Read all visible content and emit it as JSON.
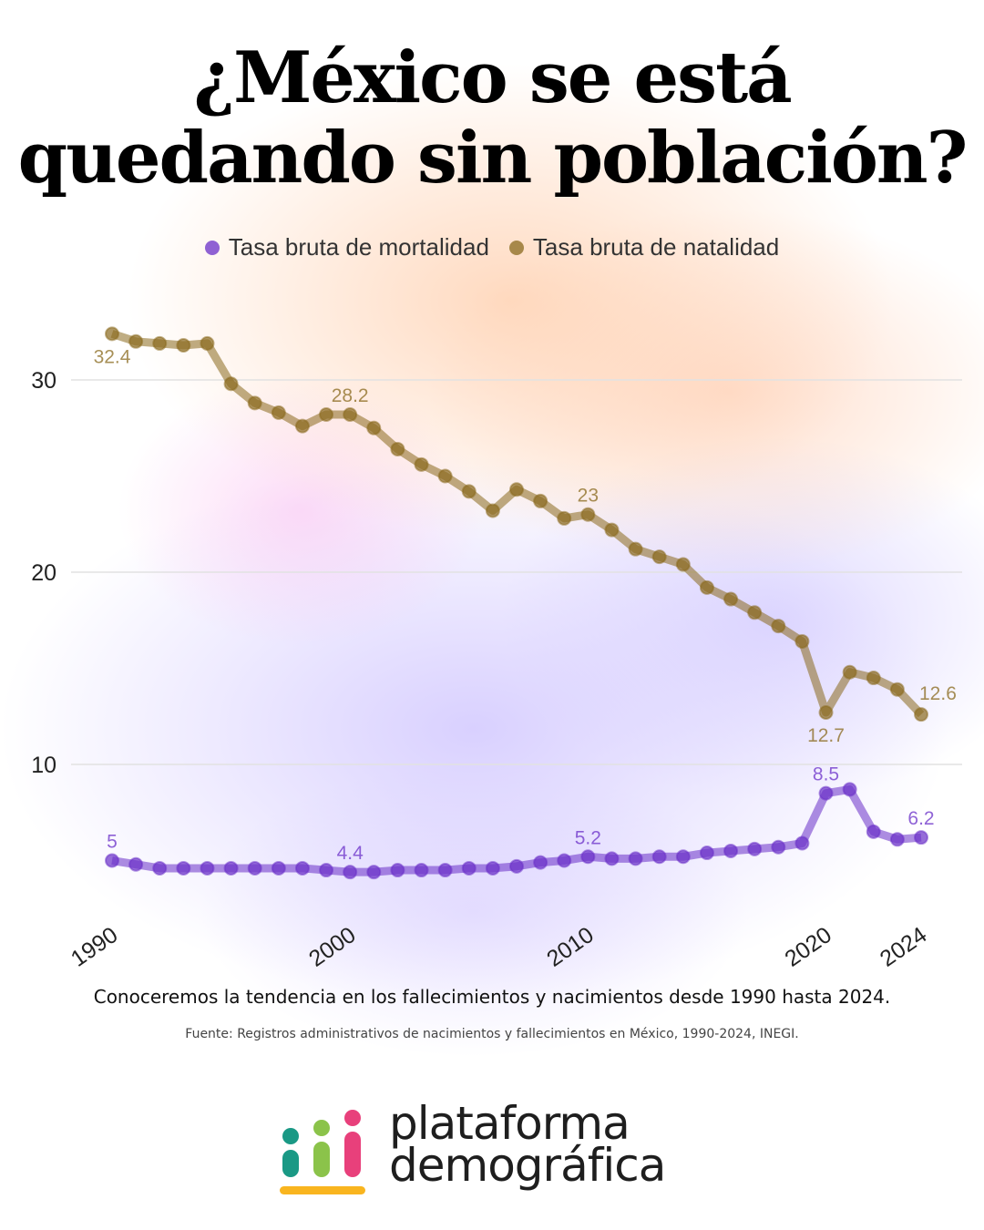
{
  "title": "¿México se está quedando sin población?",
  "caption": "Conoceremos la tendencia en los fallecimientos y nacimientos desde 1990 hasta 2024.",
  "source": "Fuente: Registros administrativos de nacimientos y fallecimientos en México, 1990-2024, INEGI.",
  "logo": {
    "line1": "plataforma",
    "line2": "demográfica",
    "colors": [
      "#1a9985",
      "#8bc34a",
      "#e8407b",
      "#f9b51f"
    ]
  },
  "chart_data": {
    "type": "line",
    "title": "",
    "xlabel": "",
    "ylabel": "",
    "legend_position": "top",
    "grid": true,
    "ylim": [
      3,
      34
    ],
    "xlim": [
      1990,
      2024
    ],
    "x_ticks": [
      1990,
      2000,
      2010,
      2020,
      2024
    ],
    "y_ticks": [
      10,
      20,
      30
    ],
    "x": [
      1990,
      1991,
      1992,
      1993,
      1994,
      1995,
      1996,
      1997,
      1998,
      1999,
      2000,
      2001,
      2002,
      2003,
      2004,
      2005,
      2006,
      2007,
      2008,
      2009,
      2010,
      2011,
      2012,
      2013,
      2014,
      2015,
      2016,
      2017,
      2018,
      2019,
      2020,
      2021,
      2022,
      2023,
      2024
    ],
    "series": [
      {
        "name": "Tasa bruta de mortalidad",
        "color": "#6a2fc8",
        "values": [
          5.0,
          4.8,
          4.6,
          4.6,
          4.6,
          4.6,
          4.6,
          4.6,
          4.6,
          4.5,
          4.4,
          4.4,
          4.5,
          4.5,
          4.5,
          4.6,
          4.6,
          4.7,
          4.9,
          5.0,
          5.2,
          5.1,
          5.1,
          5.2,
          5.2,
          5.4,
          5.5,
          5.6,
          5.7,
          5.9,
          8.5,
          8.7,
          6.5,
          6.1,
          6.2
        ],
        "labels": [
          {
            "x": 1990,
            "text": "5",
            "pos": "above"
          },
          {
            "x": 2000,
            "text": "4.4",
            "pos": "above"
          },
          {
            "x": 2010,
            "text": "5.2",
            "pos": "above"
          },
          {
            "x": 2020,
            "text": "8.5",
            "pos": "above"
          },
          {
            "x": 2024,
            "text": "6.2",
            "pos": "above"
          }
        ]
      },
      {
        "name": "Tasa bruta de natalidad",
        "color": "#8a6a1e",
        "values": [
          32.4,
          32.0,
          31.9,
          31.8,
          31.9,
          29.8,
          28.8,
          28.3,
          27.6,
          28.2,
          28.2,
          27.5,
          26.4,
          25.6,
          25.0,
          24.2,
          23.2,
          24.3,
          23.7,
          22.8,
          23.0,
          22.2,
          21.2,
          20.8,
          20.4,
          19.2,
          18.6,
          17.9,
          17.2,
          16.4,
          12.7,
          14.8,
          14.5,
          13.9,
          12.6
        ],
        "labels": [
          {
            "x": 1990,
            "text": "32.4",
            "pos": "below"
          },
          {
            "x": 2000,
            "text": "28.2",
            "pos": "above"
          },
          {
            "x": 2010,
            "text": "23",
            "pos": "above"
          },
          {
            "x": 2020,
            "text": "12.7",
            "pos": "below"
          },
          {
            "x": 2024,
            "text": "12.6",
            "pos": "above"
          }
        ]
      }
    ]
  }
}
